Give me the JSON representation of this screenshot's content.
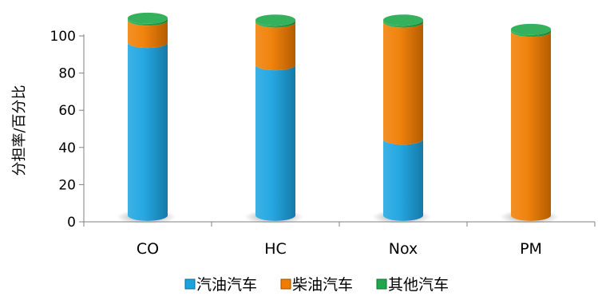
{
  "chart_data": {
    "type": "bar",
    "stacked": true,
    "style": "3d-cylinder",
    "title": "",
    "xlabel": "",
    "ylabel": "分担率/百分比",
    "ylim": [
      0,
      100
    ],
    "yticks": [
      0,
      20,
      40,
      60,
      80,
      100
    ],
    "grid": false,
    "legend_position": "bottom",
    "categories": [
      "CO",
      "HC",
      "Nox",
      "PM"
    ],
    "series": [
      {
        "name": "汽油汽车",
        "color": "#1ba3e0",
        "values": [
          93,
          81,
          41,
          0
        ]
      },
      {
        "name": "柴油汽车",
        "color": "#f07c00",
        "values": [
          12,
          23,
          63,
          99
        ]
      },
      {
        "name": "其他汽车",
        "color": "#1fa84b",
        "values": [
          1,
          1,
          1,
          1
        ]
      }
    ]
  }
}
